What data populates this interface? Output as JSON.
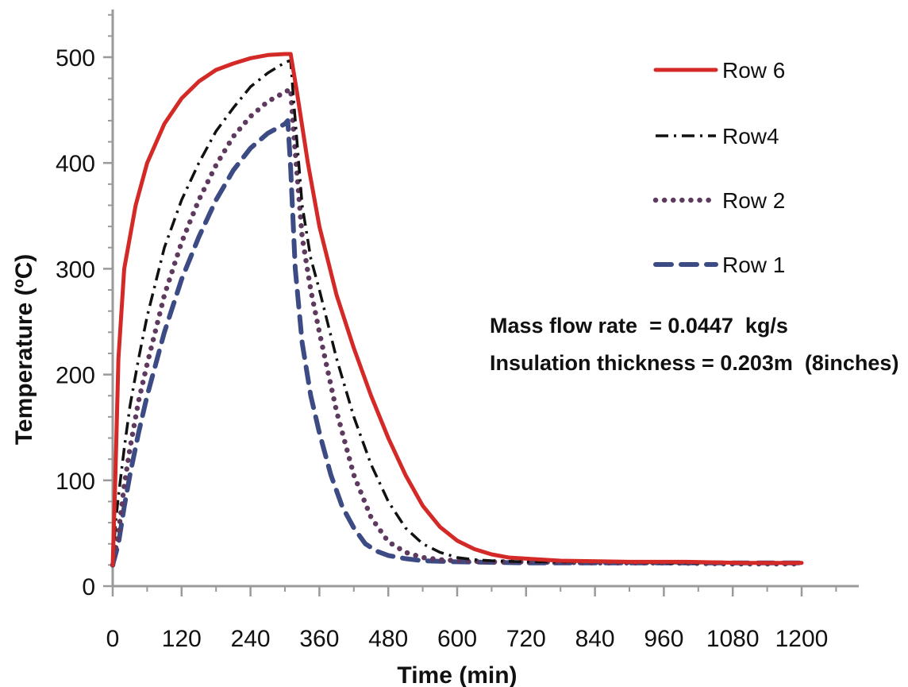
{
  "chart_data": {
    "type": "line",
    "title": "",
    "xlabel": "Time (min)",
    "ylabel": "Temperature (ºC)",
    "xlim": [
      0,
      1200
    ],
    "ylim": [
      0,
      500
    ],
    "x_ticks": [
      0,
      120,
      240,
      360,
      480,
      600,
      720,
      840,
      960,
      1080,
      1200
    ],
    "x_tick_labels": [
      "0",
      "120",
      "240",
      "360",
      "480",
      "600",
      "720",
      "840",
      "960",
      "1080",
      "1200"
    ],
    "y_ticks": [
      0,
      100,
      200,
      300,
      400,
      500
    ],
    "y_tick_labels": [
      "0",
      "100",
      "200",
      "300",
      "400",
      "500"
    ],
    "grid": false,
    "legend_position": "top-right",
    "series": [
      {
        "name": "Row 6",
        "color": "#d42a27",
        "style": "solid",
        "x": [
          0,
          5,
          10,
          20,
          40,
          60,
          90,
          120,
          150,
          180,
          210,
          240,
          270,
          300,
          310,
          320,
          340,
          360,
          390,
          420,
          450,
          480,
          510,
          540,
          570,
          600,
          630,
          660,
          690,
          720,
          780,
          900,
          1000,
          1100,
          1200
        ],
        "y": [
          20,
          110,
          215,
          300,
          360,
          400,
          437,
          461,
          477,
          488,
          494,
          499,
          502,
          503,
          503,
          470,
          400,
          340,
          275,
          225,
          180,
          140,
          105,
          76,
          56,
          43,
          35,
          30,
          27,
          26,
          24,
          23,
          23,
          22,
          22
        ]
      },
      {
        "name": "Row4",
        "color": "#111111",
        "style": "dashdot",
        "x": [
          0,
          5,
          10,
          20,
          30,
          45,
          60,
          90,
          120,
          150,
          180,
          210,
          240,
          270,
          300,
          310,
          315,
          330,
          345,
          360,
          390,
          420,
          450,
          480,
          510,
          540,
          570,
          600,
          630,
          660,
          720,
          840,
          960,
          1080,
          1200
        ],
        "y": [
          20,
          60,
          85,
          130,
          170,
          215,
          255,
          320,
          365,
          400,
          430,
          452,
          472,
          485,
          495,
          497,
          460,
          360,
          310,
          280,
          215,
          160,
          115,
          80,
          55,
          40,
          32,
          27,
          25,
          24,
          23,
          23,
          22,
          22,
          22
        ]
      },
      {
        "name": "Row 2",
        "color": "#5e3a5e",
        "style": "dotted",
        "x": [
          0,
          10,
          20,
          30,
          45,
          60,
          90,
          120,
          150,
          180,
          210,
          240,
          270,
          300,
          310,
          315,
          330,
          345,
          360,
          390,
          420,
          450,
          480,
          510,
          540,
          570,
          600,
          660,
          720,
          840,
          960,
          1080,
          1200
        ],
        "y": [
          20,
          50,
          95,
          130,
          175,
          210,
          275,
          325,
          365,
          398,
          425,
          444,
          458,
          467,
          470,
          430,
          330,
          280,
          240,
          165,
          105,
          65,
          42,
          32,
          27,
          25,
          24,
          23,
          23,
          22,
          22,
          21,
          21
        ]
      },
      {
        "name": "Row 1",
        "color": "#3d4b85",
        "style": "dashed",
        "x": [
          0,
          10,
          20,
          30,
          45,
          60,
          90,
          120,
          150,
          180,
          210,
          240,
          270,
          300,
          305,
          310,
          318,
          330,
          345,
          360,
          380,
          400,
          420,
          440,
          460,
          480,
          510,
          540,
          600,
          720,
          840,
          960,
          1080,
          1200
        ],
        "y": [
          20,
          40,
          75,
          105,
          145,
          180,
          240,
          290,
          330,
          365,
          393,
          414,
          428,
          437,
          440,
          395,
          300,
          230,
          180,
          145,
          105,
          75,
          55,
          40,
          33,
          29,
          26,
          24,
          23,
          22,
          22,
          22,
          22,
          22
        ]
      }
    ],
    "annotations": [
      "Mass flow rate  = 0.0447  kg/s",
      "Insulation thickness = 0.203m  (8inches)"
    ]
  }
}
